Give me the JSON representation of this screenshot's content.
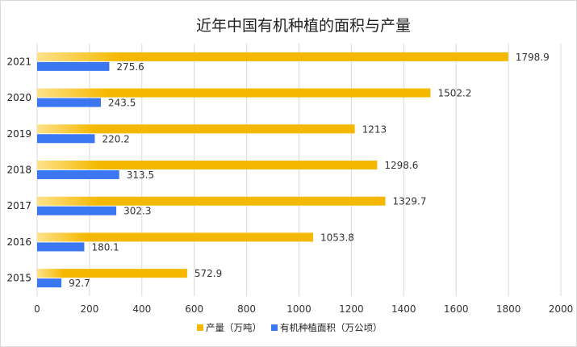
{
  "chart_data": {
    "type": "bar",
    "orientation": "horizontal",
    "title": "近年中国有机种植的面积与产量",
    "categories": [
      "2021",
      "2020",
      "2019",
      "2018",
      "2017",
      "2016",
      "2015"
    ],
    "series": [
      {
        "name": "产量（万吨）",
        "color": "#f5b800",
        "values": [
          1798.9,
          1502.2,
          1213,
          1298.6,
          1329.7,
          1053.8,
          572.9
        ],
        "labels": [
          "1798.9",
          "1502.2",
          "1213",
          "1298.6",
          "1329.7",
          "1053.8",
          "572.9"
        ]
      },
      {
        "name": "有机种植面积（万公顷）",
        "color": "#3a77f0",
        "values": [
          275.6,
          243.5,
          220.2,
          313.5,
          302.3,
          180.1,
          92.7
        ],
        "labels": [
          "275.6",
          "243.5",
          "220.2",
          "313.5",
          "302.3",
          "180.1",
          "92.7"
        ]
      }
    ],
    "xlim": [
      0,
      2000
    ],
    "xticks": [
      "0",
      "200",
      "400",
      "600",
      "800",
      "1000",
      "1200",
      "1400",
      "1600",
      "1800",
      "2000"
    ],
    "xlabel": "",
    "ylabel": "",
    "grid": true,
    "legend": "bottom"
  }
}
